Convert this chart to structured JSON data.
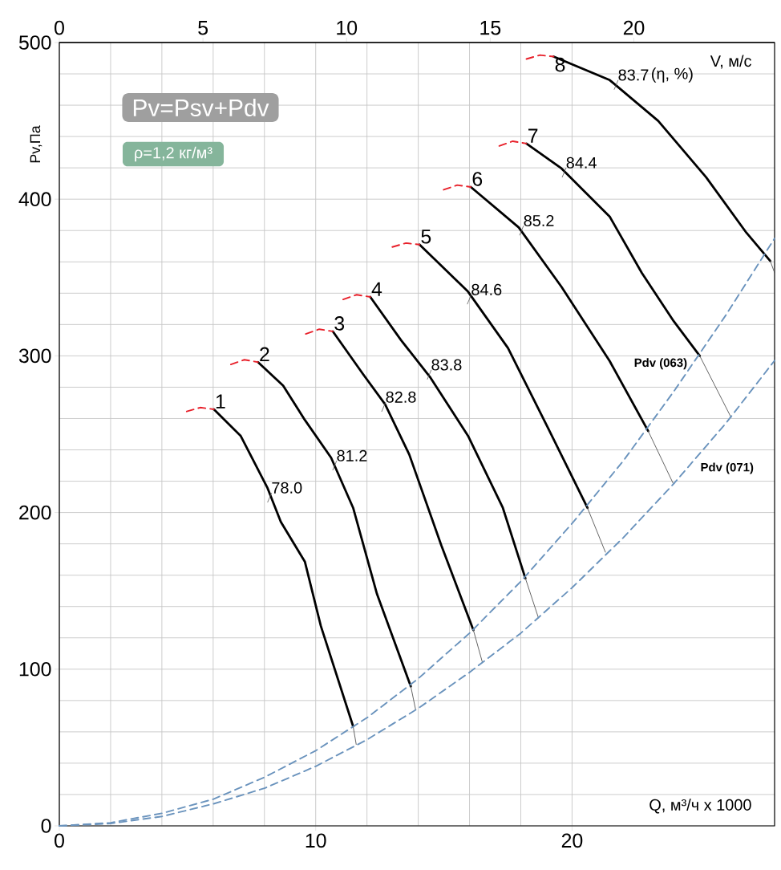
{
  "chart_data": {
    "type": "line",
    "xlabel": "Q, м³/ч x 1000",
    "ylabel": "Pv,Па",
    "x2label": "V, м/с",
    "xlim": [
      0,
      27.9
    ],
    "ylim": [
      0,
      500
    ],
    "xticks": [
      0,
      10,
      20
    ],
    "yticks": [
      0,
      100,
      200,
      300,
      400,
      500
    ],
    "x2lim": [
      0,
      24.9
    ],
    "x2ticks": [
      0,
      5,
      10,
      15,
      20
    ],
    "grid": true,
    "annotations": [
      "Pv=Psv+Pdv",
      "ρ=1,2 кг/м³",
      "(η, %)",
      {
        "text": "78.0",
        "x": 8.2,
        "y": 209.5
      },
      {
        "text": "81.2",
        "x": 10.74,
        "y": 230
      },
      {
        "text": "82.8",
        "x": 12.65,
        "y": 267.4
      },
      {
        "text": "83.8",
        "x": 14.43,
        "y": 288
      },
      {
        "text": "84.6",
        "x": 15.99,
        "y": 336
      },
      {
        "text": "85.2",
        "x": 18.03,
        "y": 380
      },
      {
        "text": "84.4",
        "x": 19.69,
        "y": 417
      },
      {
        "text": "83.7",
        "x": 21.72,
        "y": 473
      }
    ],
    "series": [
      {
        "name": "1",
        "color": "#000000",
        "line_style": "solid",
        "x": [
          6.03,
          7.07,
          8.11,
          8.64,
          9.58,
          10.2,
          11.46
        ],
        "values": [
          265.9,
          249,
          216,
          194,
          168.5,
          127.6,
          63.5
        ]
      },
      {
        "name": "2",
        "color": "#000000",
        "line_style": "solid",
        "x": [
          7.75,
          8.73,
          9.58,
          10.6,
          11.46,
          12.39,
          13.71
        ],
        "values": [
          296,
          281,
          259,
          235,
          203,
          148,
          89
        ]
      },
      {
        "name": "3",
        "color": "#000000",
        "line_style": "solid",
        "x": [
          10.67,
          11.86,
          12.71,
          13.65,
          14.9,
          16.15
        ],
        "values": [
          315.6,
          288,
          269,
          237,
          179,
          125
        ]
      },
      {
        "name": "4",
        "color": "#000000",
        "line_style": "solid",
        "x": [
          12.13,
          13.33,
          14.48,
          15.94,
          17.3,
          18.18
        ],
        "values": [
          337.6,
          310,
          286,
          249,
          203,
          158
        ]
      },
      {
        "name": "5",
        "color": "#000000",
        "line_style": "solid",
        "x": [
          14.05,
          15.94,
          17.5,
          19.06,
          20.6
        ],
        "values": [
          371,
          341,
          305,
          254,
          203
        ]
      },
      {
        "name": "6",
        "color": "#000000",
        "line_style": "solid",
        "x": [
          16.05,
          17.92,
          19.59,
          21.47,
          22.97
        ],
        "values": [
          407.8,
          382,
          344,
          296.6,
          252
        ]
      },
      {
        "name": "7",
        "color": "#000000",
        "line_style": "solid",
        "x": [
          18.22,
          19.59,
          21.47,
          22.72,
          23.97,
          24.98
        ],
        "values": [
          435.5,
          419.6,
          388.8,
          353,
          322,
          300
        ]
      },
      {
        "name": "8",
        "color": "#000000",
        "line_style": "solid",
        "x": [
          19.28,
          21.47,
          23.36,
          25.23,
          26.8,
          27.73
        ],
        "values": [
          491,
          476,
          450,
          414,
          378.6,
          360.6
        ]
      },
      {
        "color": "#e8202a",
        "line_style": "dashed",
        "x": [
          4.97,
          5.5,
          6.03
        ],
        "values": [
          264.5,
          267,
          265.9
        ]
      },
      {
        "color": "#e8202a",
        "line_style": "dashed",
        "x": [
          6.69,
          7.22,
          7.75
        ],
        "values": [
          294.5,
          297.5,
          296
        ]
      },
      {
        "color": "#e8202a",
        "line_style": "dashed",
        "x": [
          9.61,
          10.14,
          10.67
        ],
        "values": [
          314,
          317,
          315.6
        ]
      },
      {
        "color": "#e8202a",
        "line_style": "dashed",
        "x": [
          11.07,
          11.6,
          12.13
        ],
        "values": [
          336,
          339,
          337.6
        ]
      },
      {
        "color": "#e8202a",
        "line_style": "dashed",
        "x": [
          12.99,
          13.52,
          14.05
        ],
        "values": [
          369.5,
          372,
          371
        ]
      },
      {
        "color": "#e8202a",
        "line_style": "dashed",
        "x": [
          14.99,
          15.52,
          16.05
        ],
        "values": [
          406,
          409,
          407.8
        ]
      },
      {
        "color": "#e8202a",
        "line_style": "dashed",
        "x": [
          17.16,
          17.69,
          18.22
        ],
        "values": [
          434,
          437,
          435.5
        ]
      },
      {
        "color": "#e8202a",
        "line_style": "dashed",
        "x": [
          18.22,
          18.75,
          19.28
        ],
        "values": [
          489.5,
          492,
          491
        ]
      },
      {
        "color": "#555555",
        "line_style": "solid",
        "x": [
          11.46,
          11.58
        ],
        "values": [
          63.5,
          52
        ]
      },
      {
        "color": "#555555",
        "line_style": "solid",
        "x": [
          13.71,
          13.9
        ],
        "values": [
          89,
          74
        ]
      },
      {
        "color": "#555555",
        "line_style": "solid",
        "x": [
          16.15,
          16.5
        ],
        "values": [
          125,
          104.5
        ]
      },
      {
        "color": "#555555",
        "line_style": "solid",
        "x": [
          18.18,
          18.69
        ],
        "values": [
          158,
          132.7
        ]
      },
      {
        "color": "#555555",
        "line_style": "solid",
        "x": [
          20.6,
          21.3
        ],
        "values": [
          203,
          174.7
        ]
      },
      {
        "color": "#555555",
        "line_style": "solid",
        "x": [
          22.97,
          23.94
        ],
        "values": [
          252,
          218.7
        ]
      },
      {
        "color": "#555555",
        "line_style": "solid",
        "x": [
          24.98,
          26.2
        ],
        "values": [
          300,
          260.8
        ]
      },
      {
        "color": "#555555",
        "line_style": "solid",
        "x": [
          27.73,
          27.9
        ],
        "values": [
          360.6,
          353
        ]
      },
      {
        "name": "Pdv (063)",
        "color": "#6a93bd",
        "line_style": "dashed",
        "x": [
          0,
          2,
          4,
          6,
          8,
          10,
          12,
          14,
          16,
          18,
          20,
          22,
          24,
          26,
          27.9
        ],
        "values": [
          0,
          2,
          8,
          17,
          31,
          48,
          69,
          94,
          123,
          156,
          193,
          233,
          278,
          326,
          375
        ]
      },
      {
        "name": "Pdv (071)",
        "color": "#6a93bd",
        "line_style": "dashed",
        "x": [
          0,
          2,
          4,
          6,
          8,
          10,
          12,
          14,
          16,
          18,
          20,
          22,
          24,
          26,
          27.9
        ],
        "values": [
          0,
          1.5,
          6,
          14,
          24,
          38,
          55,
          75,
          98,
          123,
          152,
          184,
          219,
          257,
          297
        ]
      }
    ]
  }
}
